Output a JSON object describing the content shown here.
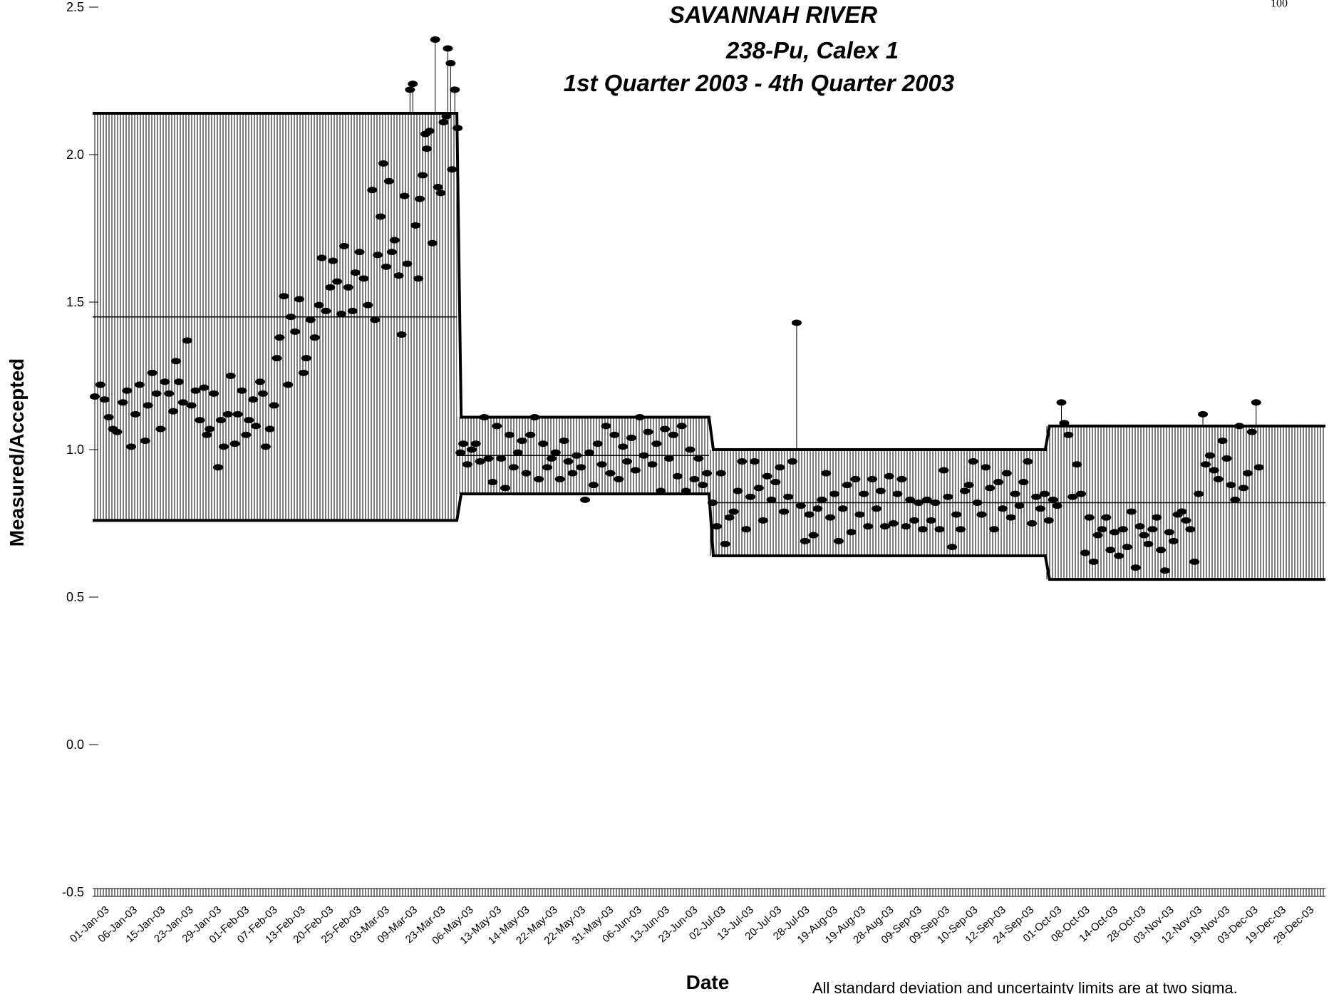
{
  "page_number": "100",
  "footnote": "All standard deviation and uncertainty limits are at two sigma.",
  "chart_data": {
    "type": "scatter",
    "title": [
      "SAVANNAH RIVER",
      "238-Pu, Calex 1",
      "1st Quarter 2003 - 4th Quarter 2003"
    ],
    "xlabel": "Date",
    "ylabel": "Measured/Accepted",
    "ylim": [
      -0.5,
      2.5
    ],
    "yticks": [
      "2.5",
      "2.0",
      "1.5",
      "1.0",
      "0.5",
      "0.0",
      "-0.5"
    ],
    "x_categories": [
      "01-Jan-03",
      "06-Jan-03",
      "15-Jan-03",
      "23-Jan-03",
      "29-Jan-03",
      "01-Feb-03",
      "07-Feb-03",
      "13-Feb-03",
      "20-Feb-03",
      "25-Feb-03",
      "03-Mar-03",
      "09-Mar-03",
      "23-Mar-03",
      "06-May-03",
      "13-May-03",
      "14-May-03",
      "22-May-03",
      "22-May-03",
      "31-May-03",
      "06-Jun-03",
      "13-Jun-03",
      "23-Jun-03",
      "02-Jul-03",
      "13-Jul-03",
      "20-Jul-03",
      "28-Jul-03",
      "19-Aug-03",
      "19-Aug-03",
      "28-Aug-03",
      "09-Sep-03",
      "09-Sep-03",
      "10-Sep-03",
      "12-Sep-03",
      "24-Sep-03",
      "01-Oct-03",
      "08-Oct-03",
      "14-Oct-03",
      "28-Oct-03",
      "03-Nov-03",
      "12-Nov-03",
      "19-Nov-03",
      "03-Dec-03",
      "19-Dec-03",
      "28-Dec-03"
    ],
    "grid": false,
    "legend": "none",
    "limit_bands": [
      {
        "start": "01-Jan-03",
        "end": "06-May-03",
        "upper": 2.14,
        "lower": 0.76,
        "mean": 1.45
      },
      {
        "start": "06-May-03",
        "end": "02-Jul-03",
        "upper": 1.11,
        "lower": 0.85,
        "mean": 0.98
      },
      {
        "start": "02-Jul-03",
        "end": "01-Oct-03",
        "upper": 1.0,
        "lower": 0.64,
        "mean": 0.82
      },
      {
        "start": "01-Oct-03",
        "end": "28-Dec-03",
        "upper": 1.08,
        "lower": 0.56,
        "mean": 0.82
      }
    ],
    "points": [
      {
        "x": 0.0,
        "y": 1.18
      },
      {
        "x": 0.2,
        "y": 1.22
      },
      {
        "x": 0.35,
        "y": 1.17
      },
      {
        "x": 0.5,
        "y": 1.11
      },
      {
        "x": 0.65,
        "y": 1.07
      },
      {
        "x": 0.8,
        "y": 1.06
      },
      {
        "x": 1.0,
        "y": 1.16
      },
      {
        "x": 1.15,
        "y": 1.2
      },
      {
        "x": 1.3,
        "y": 1.01
      },
      {
        "x": 1.45,
        "y": 1.12
      },
      {
        "x": 1.6,
        "y": 1.22
      },
      {
        "x": 1.8,
        "y": 1.03
      },
      {
        "x": 1.9,
        "y": 1.15
      },
      {
        "x": 2.05,
        "y": 1.26
      },
      {
        "x": 2.2,
        "y": 1.19
      },
      {
        "x": 2.35,
        "y": 1.07
      },
      {
        "x": 2.5,
        "y": 1.23
      },
      {
        "x": 2.65,
        "y": 1.19
      },
      {
        "x": 2.8,
        "y": 1.13
      },
      {
        "x": 2.9,
        "y": 1.3
      },
      {
        "x": 3.0,
        "y": 1.23
      },
      {
        "x": 3.15,
        "y": 1.16
      },
      {
        "x": 3.3,
        "y": 1.37
      },
      {
        "x": 3.45,
        "y": 1.15
      },
      {
        "x": 3.6,
        "y": 1.2
      },
      {
        "x": 3.75,
        "y": 1.1
      },
      {
        "x": 3.9,
        "y": 1.21
      },
      {
        "x": 4.0,
        "y": 1.05
      },
      {
        "x": 4.1,
        "y": 1.07
      },
      {
        "x": 4.25,
        "y": 1.19
      },
      {
        "x": 4.4,
        "y": 0.94
      },
      {
        "x": 4.5,
        "y": 1.1
      },
      {
        "x": 4.6,
        "y": 1.01
      },
      {
        "x": 4.75,
        "y": 1.12
      },
      {
        "x": 4.85,
        "y": 1.25
      },
      {
        "x": 5.0,
        "y": 1.02
      },
      {
        "x": 5.1,
        "y": 1.12
      },
      {
        "x": 5.25,
        "y": 1.2
      },
      {
        "x": 5.4,
        "y": 1.05
      },
      {
        "x": 5.5,
        "y": 1.1
      },
      {
        "x": 5.65,
        "y": 1.17
      },
      {
        "x": 5.75,
        "y": 1.08
      },
      {
        "x": 5.9,
        "y": 1.23
      },
      {
        "x": 6.0,
        "y": 1.19
      },
      {
        "x": 6.1,
        "y": 1.01
      },
      {
        "x": 6.25,
        "y": 1.07
      },
      {
        "x": 6.4,
        "y": 1.15
      },
      {
        "x": 6.5,
        "y": 1.31
      },
      {
        "x": 6.6,
        "y": 1.38
      },
      {
        "x": 6.75,
        "y": 1.52
      },
      {
        "x": 6.9,
        "y": 1.22
      },
      {
        "x": 7.0,
        "y": 1.45
      },
      {
        "x": 7.15,
        "y": 1.4
      },
      {
        "x": 7.3,
        "y": 1.51
      },
      {
        "x": 7.45,
        "y": 1.26
      },
      {
        "x": 7.55,
        "y": 1.31
      },
      {
        "x": 7.7,
        "y": 1.44
      },
      {
        "x": 7.85,
        "y": 1.38
      },
      {
        "x": 8.0,
        "y": 1.49
      },
      {
        "x": 8.1,
        "y": 1.65
      },
      {
        "x": 8.25,
        "y": 1.47
      },
      {
        "x": 8.4,
        "y": 1.55
      },
      {
        "x": 8.5,
        "y": 1.64
      },
      {
        "x": 8.65,
        "y": 1.57
      },
      {
        "x": 8.8,
        "y": 1.46
      },
      {
        "x": 8.9,
        "y": 1.69
      },
      {
        "x": 9.05,
        "y": 1.55
      },
      {
        "x": 9.2,
        "y": 1.47
      },
      {
        "x": 9.3,
        "y": 1.6
      },
      {
        "x": 9.45,
        "y": 1.67
      },
      {
        "x": 9.6,
        "y": 1.58
      },
      {
        "x": 9.75,
        "y": 1.49
      },
      {
        "x": 9.9,
        "y": 1.88
      },
      {
        "x": 10.0,
        "y": 1.44
      },
      {
        "x": 10.1,
        "y": 1.66
      },
      {
        "x": 10.2,
        "y": 1.79
      },
      {
        "x": 10.3,
        "y": 1.97
      },
      {
        "x": 10.4,
        "y": 1.62
      },
      {
        "x": 10.5,
        "y": 1.91
      },
      {
        "x": 10.6,
        "y": 1.67
      },
      {
        "x": 10.7,
        "y": 1.71
      },
      {
        "x": 10.85,
        "y": 1.59
      },
      {
        "x": 10.95,
        "y": 1.39
      },
      {
        "x": 11.05,
        "y": 1.86
      },
      {
        "x": 11.15,
        "y": 1.63
      },
      {
        "x": 11.25,
        "y": 2.22
      },
      {
        "x": 11.35,
        "y": 2.24
      },
      {
        "x": 11.45,
        "y": 1.76
      },
      {
        "x": 11.55,
        "y": 1.58
      },
      {
        "x": 11.6,
        "y": 1.85
      },
      {
        "x": 11.7,
        "y": 1.93
      },
      {
        "x": 11.8,
        "y": 2.07
      },
      {
        "x": 11.85,
        "y": 2.02
      },
      {
        "x": 11.95,
        "y": 2.08
      },
      {
        "x": 12.05,
        "y": 1.7
      },
      {
        "x": 12.15,
        "y": 2.39
      },
      {
        "x": 12.25,
        "y": 1.89
      },
      {
        "x": 12.35,
        "y": 1.87
      },
      {
        "x": 12.45,
        "y": 2.11
      },
      {
        "x": 12.55,
        "y": 2.13
      },
      {
        "x": 12.6,
        "y": 2.36
      },
      {
        "x": 12.7,
        "y": 2.31
      },
      {
        "x": 12.75,
        "y": 1.95
      },
      {
        "x": 12.85,
        "y": 2.22
      },
      {
        "x": 12.95,
        "y": 2.09
      },
      {
        "x": 13.05,
        "y": 0.99
      },
      {
        "x": 13.15,
        "y": 1.02
      },
      {
        "x": 13.3,
        "y": 0.95
      },
      {
        "x": 13.45,
        "y": 1.0
      },
      {
        "x": 13.6,
        "y": 1.02
      },
      {
        "x": 13.75,
        "y": 0.96
      },
      {
        "x": 13.9,
        "y": 1.11
      },
      {
        "x": 14.05,
        "y": 0.97
      },
      {
        "x": 14.2,
        "y": 0.89
      },
      {
        "x": 14.35,
        "y": 1.08
      },
      {
        "x": 14.5,
        "y": 0.97
      },
      {
        "x": 14.65,
        "y": 0.87
      },
      {
        "x": 14.8,
        "y": 1.05
      },
      {
        "x": 14.95,
        "y": 0.94
      },
      {
        "x": 15.1,
        "y": 0.99
      },
      {
        "x": 15.25,
        "y": 1.03
      },
      {
        "x": 15.4,
        "y": 0.92
      },
      {
        "x": 15.55,
        "y": 1.05
      },
      {
        "x": 15.7,
        "y": 1.11
      },
      {
        "x": 15.85,
        "y": 0.9
      },
      {
        "x": 16.0,
        "y": 1.02
      },
      {
        "x": 16.15,
        "y": 0.94
      },
      {
        "x": 16.3,
        "y": 0.97
      },
      {
        "x": 16.45,
        "y": 0.99
      },
      {
        "x": 16.6,
        "y": 0.9
      },
      {
        "x": 16.75,
        "y": 1.03
      },
      {
        "x": 16.9,
        "y": 0.96
      },
      {
        "x": 17.05,
        "y": 0.92
      },
      {
        "x": 17.2,
        "y": 0.98
      },
      {
        "x": 17.35,
        "y": 0.94
      },
      {
        "x": 17.5,
        "y": 0.83
      },
      {
        "x": 17.65,
        "y": 0.99
      },
      {
        "x": 17.8,
        "y": 0.88
      },
      {
        "x": 17.95,
        "y": 1.02
      },
      {
        "x": 18.1,
        "y": 0.95
      },
      {
        "x": 18.25,
        "y": 1.08
      },
      {
        "x": 18.4,
        "y": 0.92
      },
      {
        "x": 18.55,
        "y": 1.05
      },
      {
        "x": 18.7,
        "y": 0.9
      },
      {
        "x": 18.85,
        "y": 1.01
      },
      {
        "x": 19.0,
        "y": 0.96
      },
      {
        "x": 19.15,
        "y": 1.04
      },
      {
        "x": 19.3,
        "y": 0.93
      },
      {
        "x": 19.45,
        "y": 1.11
      },
      {
        "x": 19.6,
        "y": 0.98
      },
      {
        "x": 19.75,
        "y": 1.06
      },
      {
        "x": 19.9,
        "y": 0.95
      },
      {
        "x": 20.05,
        "y": 1.02
      },
      {
        "x": 20.2,
        "y": 0.86
      },
      {
        "x": 20.35,
        "y": 1.07
      },
      {
        "x": 20.5,
        "y": 0.97
      },
      {
        "x": 20.65,
        "y": 1.05
      },
      {
        "x": 20.8,
        "y": 0.91
      },
      {
        "x": 20.95,
        "y": 1.08
      },
      {
        "x": 21.1,
        "y": 0.86
      },
      {
        "x": 21.25,
        "y": 1.0
      },
      {
        "x": 21.4,
        "y": 0.9
      },
      {
        "x": 21.55,
        "y": 0.97
      },
      {
        "x": 21.7,
        "y": 0.88
      },
      {
        "x": 21.85,
        "y": 0.92
      },
      {
        "x": 22.05,
        "y": 0.82
      },
      {
        "x": 22.2,
        "y": 0.74
      },
      {
        "x": 22.35,
        "y": 0.92
      },
      {
        "x": 22.5,
        "y": 0.68
      },
      {
        "x": 22.65,
        "y": 0.77
      },
      {
        "x": 22.8,
        "y": 0.79
      },
      {
        "x": 22.95,
        "y": 0.86
      },
      {
        "x": 23.1,
        "y": 0.96
      },
      {
        "x": 23.25,
        "y": 0.73
      },
      {
        "x": 23.4,
        "y": 0.84
      },
      {
        "x": 23.55,
        "y": 0.96
      },
      {
        "x": 23.7,
        "y": 0.87
      },
      {
        "x": 23.85,
        "y": 0.76
      },
      {
        "x": 24.0,
        "y": 0.91
      },
      {
        "x": 24.15,
        "y": 0.83
      },
      {
        "x": 24.3,
        "y": 0.89
      },
      {
        "x": 24.45,
        "y": 0.94
      },
      {
        "x": 24.6,
        "y": 0.79
      },
      {
        "x": 24.75,
        "y": 0.84
      },
      {
        "x": 24.9,
        "y": 0.96
      },
      {
        "x": 25.05,
        "y": 1.43
      },
      {
        "x": 25.2,
        "y": 0.81
      },
      {
        "x": 25.35,
        "y": 0.69
      },
      {
        "x": 25.5,
        "y": 0.78
      },
      {
        "x": 25.65,
        "y": 0.71
      },
      {
        "x": 25.8,
        "y": 0.8
      },
      {
        "x": 25.95,
        "y": 0.83
      },
      {
        "x": 26.1,
        "y": 0.92
      },
      {
        "x": 26.25,
        "y": 0.77
      },
      {
        "x": 26.4,
        "y": 0.85
      },
      {
        "x": 26.55,
        "y": 0.69
      },
      {
        "x": 26.7,
        "y": 0.8
      },
      {
        "x": 26.85,
        "y": 0.88
      },
      {
        "x": 27.0,
        "y": 0.72
      },
      {
        "x": 27.15,
        "y": 0.9
      },
      {
        "x": 27.3,
        "y": 0.78
      },
      {
        "x": 27.45,
        "y": 0.85
      },
      {
        "x": 27.6,
        "y": 0.74
      },
      {
        "x": 27.75,
        "y": 0.9
      },
      {
        "x": 27.9,
        "y": 0.8
      },
      {
        "x": 28.05,
        "y": 0.86
      },
      {
        "x": 28.2,
        "y": 0.74
      },
      {
        "x": 28.35,
        "y": 0.91
      },
      {
        "x": 28.5,
        "y": 0.75
      },
      {
        "x": 28.65,
        "y": 0.85
      },
      {
        "x": 28.8,
        "y": 0.9
      },
      {
        "x": 28.95,
        "y": 0.74
      },
      {
        "x": 29.1,
        "y": 0.83
      },
      {
        "x": 29.25,
        "y": 0.76
      },
      {
        "x": 29.4,
        "y": 0.82
      },
      {
        "x": 29.55,
        "y": 0.73
      },
      {
        "x": 29.7,
        "y": 0.83
      },
      {
        "x": 29.85,
        "y": 0.76
      },
      {
        "x": 30.0,
        "y": 0.82
      },
      {
        "x": 30.15,
        "y": 0.73
      },
      {
        "x": 30.3,
        "y": 0.93
      },
      {
        "x": 30.45,
        "y": 0.84
      },
      {
        "x": 30.6,
        "y": 0.67
      },
      {
        "x": 30.75,
        "y": 0.78
      },
      {
        "x": 30.9,
        "y": 0.73
      },
      {
        "x": 31.05,
        "y": 0.86
      },
      {
        "x": 31.2,
        "y": 0.88
      },
      {
        "x": 31.35,
        "y": 0.96
      },
      {
        "x": 31.5,
        "y": 0.82
      },
      {
        "x": 31.65,
        "y": 0.78
      },
      {
        "x": 31.8,
        "y": 0.94
      },
      {
        "x": 31.95,
        "y": 0.87
      },
      {
        "x": 32.1,
        "y": 0.73
      },
      {
        "x": 32.25,
        "y": 0.89
      },
      {
        "x": 32.4,
        "y": 0.8
      },
      {
        "x": 32.55,
        "y": 0.92
      },
      {
        "x": 32.7,
        "y": 0.77
      },
      {
        "x": 32.85,
        "y": 0.85
      },
      {
        "x": 33.0,
        "y": 0.81
      },
      {
        "x": 33.15,
        "y": 0.89
      },
      {
        "x": 33.3,
        "y": 0.96
      },
      {
        "x": 33.45,
        "y": 0.75
      },
      {
        "x": 33.6,
        "y": 0.84
      },
      {
        "x": 33.75,
        "y": 0.8
      },
      {
        "x": 33.9,
        "y": 0.85
      },
      {
        "x": 34.05,
        "y": 0.76
      },
      {
        "x": 34.2,
        "y": 0.83
      },
      {
        "x": 34.35,
        "y": 0.81
      },
      {
        "x": 34.5,
        "y": 1.16
      },
      {
        "x": 34.6,
        "y": 1.09
      },
      {
        "x": 34.75,
        "y": 1.05
      },
      {
        "x": 34.9,
        "y": 0.84
      },
      {
        "x": 35.05,
        "y": 0.95
      },
      {
        "x": 35.2,
        "y": 0.85
      },
      {
        "x": 35.35,
        "y": 0.65
      },
      {
        "x": 35.5,
        "y": 0.77
      },
      {
        "x": 35.65,
        "y": 0.62
      },
      {
        "x": 35.8,
        "y": 0.71
      },
      {
        "x": 35.95,
        "y": 0.73
      },
      {
        "x": 36.1,
        "y": 0.77
      },
      {
        "x": 36.25,
        "y": 0.66
      },
      {
        "x": 36.4,
        "y": 0.72
      },
      {
        "x": 36.55,
        "y": 0.64
      },
      {
        "x": 36.7,
        "y": 0.73
      },
      {
        "x": 36.85,
        "y": 0.67
      },
      {
        "x": 37.0,
        "y": 0.79
      },
      {
        "x": 37.15,
        "y": 0.6
      },
      {
        "x": 37.3,
        "y": 0.74
      },
      {
        "x": 37.45,
        "y": 0.71
      },
      {
        "x": 37.6,
        "y": 0.68
      },
      {
        "x": 37.75,
        "y": 0.73
      },
      {
        "x": 37.9,
        "y": 0.77
      },
      {
        "x": 38.05,
        "y": 0.66
      },
      {
        "x": 38.2,
        "y": 0.59
      },
      {
        "x": 38.35,
        "y": 0.72
      },
      {
        "x": 38.5,
        "y": 0.69
      },
      {
        "x": 38.65,
        "y": 0.78
      },
      {
        "x": 38.8,
        "y": 0.79
      },
      {
        "x": 38.95,
        "y": 0.76
      },
      {
        "x": 39.1,
        "y": 0.73
      },
      {
        "x": 39.25,
        "y": 0.62
      },
      {
        "x": 39.4,
        "y": 0.85
      },
      {
        "x": 39.55,
        "y": 1.12
      },
      {
        "x": 39.65,
        "y": 0.95
      },
      {
        "x": 39.8,
        "y": 0.98
      },
      {
        "x": 39.95,
        "y": 0.93
      },
      {
        "x": 40.1,
        "y": 0.9
      },
      {
        "x": 40.25,
        "y": 1.03
      },
      {
        "x": 40.4,
        "y": 0.97
      },
      {
        "x": 40.55,
        "y": 0.88
      },
      {
        "x": 40.7,
        "y": 0.83
      },
      {
        "x": 40.85,
        "y": 1.08
      },
      {
        "x": 41.0,
        "y": 0.87
      },
      {
        "x": 41.15,
        "y": 0.92
      },
      {
        "x": 41.3,
        "y": 1.06
      },
      {
        "x": 41.45,
        "y": 1.16
      },
      {
        "x": 41.55,
        "y": 0.94
      }
    ]
  }
}
